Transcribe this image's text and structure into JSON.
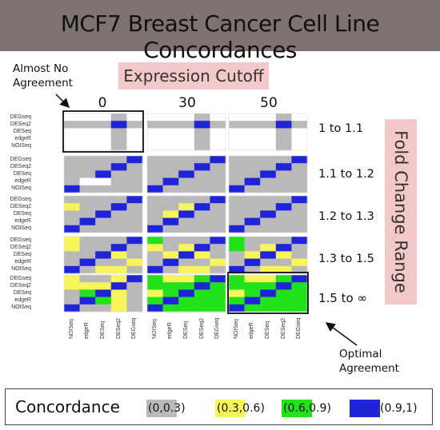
{
  "title": "MCF7 Breast Cancer Cell Line Concordances",
  "annotations": {
    "almost_no_agreement": [
      "Almost No",
      "Agreement"
    ],
    "optimal_agreement": [
      "Optimal",
      "Agreement"
    ]
  },
  "colors": {
    "gray": "#b9b9b9",
    "yellow": "#f7f55a",
    "green": "#22e21a",
    "blue": "#1f24d9",
    "pink": "#f2c9c8",
    "title_bar": "#7e7272"
  },
  "chart_data": {
    "type": "heatmap",
    "title": "MCF7 Breast Cancer Cell Line Concordances",
    "column_axis_title": "Expression Cutoff",
    "row_axis_title": "Fold Change Range",
    "expression_cutoffs": [
      "0",
      "30",
      "50"
    ],
    "fold_change_ranges": [
      "1 to 1.1",
      "1.1 to 1.2",
      "1.2 to 1.3",
      "1.3 to 1.5",
      "1.5 to ∞"
    ],
    "row_methods": [
      "DEGseq",
      "DESeq2",
      "DESeq",
      "edgeR",
      "NOISeq"
    ],
    "col_methods": [
      "NOISeq",
      "edgeR",
      "DESeq",
      "DESeq2",
      "DEGseq"
    ],
    "legend_title": "Concordance",
    "legend": [
      {
        "key": "G",
        "label": "(0,0.3)"
      },
      {
        "key": "Y",
        "label": "(0.3,0.6)"
      },
      {
        "key": "N",
        "label": "(0.6,0.9)"
      },
      {
        "key": "B",
        "label": "(0.9,1)"
      }
    ],
    "cell_legend": {
      "G": "(0,0.3)",
      "Y": "(0.3,0.6)",
      "N": "(0.6,0.9)",
      "B": "(0.9,1)",
      "W": "empty"
    },
    "grids": [
      [
        [
          "WWWGW",
          "GGGBG",
          "WWWGW",
          "WWWGW",
          "WWWGW"
        ],
        [
          "WWWGW",
          "GGGBG",
          "WWWGW",
          "WWWGW",
          "WWWGW"
        ],
        [
          "WWWGW",
          "GGGBG",
          "WWWGW",
          "WWWGW",
          "WWWGW"
        ]
      ],
      [
        [
          "GGGGB",
          "GGGBG",
          "GGBGG",
          "GWWGG",
          "BGGGG"
        ],
        [
          "GGGGB",
          "GGGBG",
          "GGBGG",
          "GBGGG",
          "BGGGG"
        ],
        [
          "GGGGB",
          "GGGBG",
          "GGBGG",
          "GBGGG",
          "BGGGG"
        ]
      ],
      [
        [
          "GGGGB",
          "YGGBG",
          "GGBGG",
          "GBGGG",
          "BGGGG"
        ],
        [
          "GGGGB",
          "GGYBG",
          "GYBGG",
          "GBGGG",
          "BGGGG"
        ],
        [
          "GGGGB",
          "GGGBG",
          "GGBGG",
          "GBGGG",
          "BGGGG"
        ]
      ],
      [
        [
          "YGGGB",
          "YGGBG",
          "GGBYG",
          "GBGGY",
          "BGYYG"
        ],
        [
          "NGGGB",
          "YGYBG",
          "GYBYG",
          "GBGGY",
          "BGYYG"
        ],
        [
          "NGGGB",
          "NGYBG",
          "GYBYG",
          "GBGGY",
          "BGYYG"
        ]
      ],
      [
        [
          "YGGYB",
          "YYYBG",
          "GNBYG",
          "GBNYG",
          "BGGYG"
        ],
        [
          "NYYNB",
          "NNNBN",
          "YNBNN",
          "NBNNN",
          "BNNNN"
        ],
        [
          "NYYNB",
          "NNNBN",
          "YNBNN",
          "NBNNN",
          "BNNNN"
        ]
      ]
    ],
    "highlight_boxes": [
      {
        "fold_change": "1 to 1.1",
        "cutoff": "0",
        "label": "Almost No Agreement"
      },
      {
        "fold_change": "1.5 to ∞",
        "cutoff": "50",
        "label": "Optimal Agreement"
      }
    ]
  }
}
